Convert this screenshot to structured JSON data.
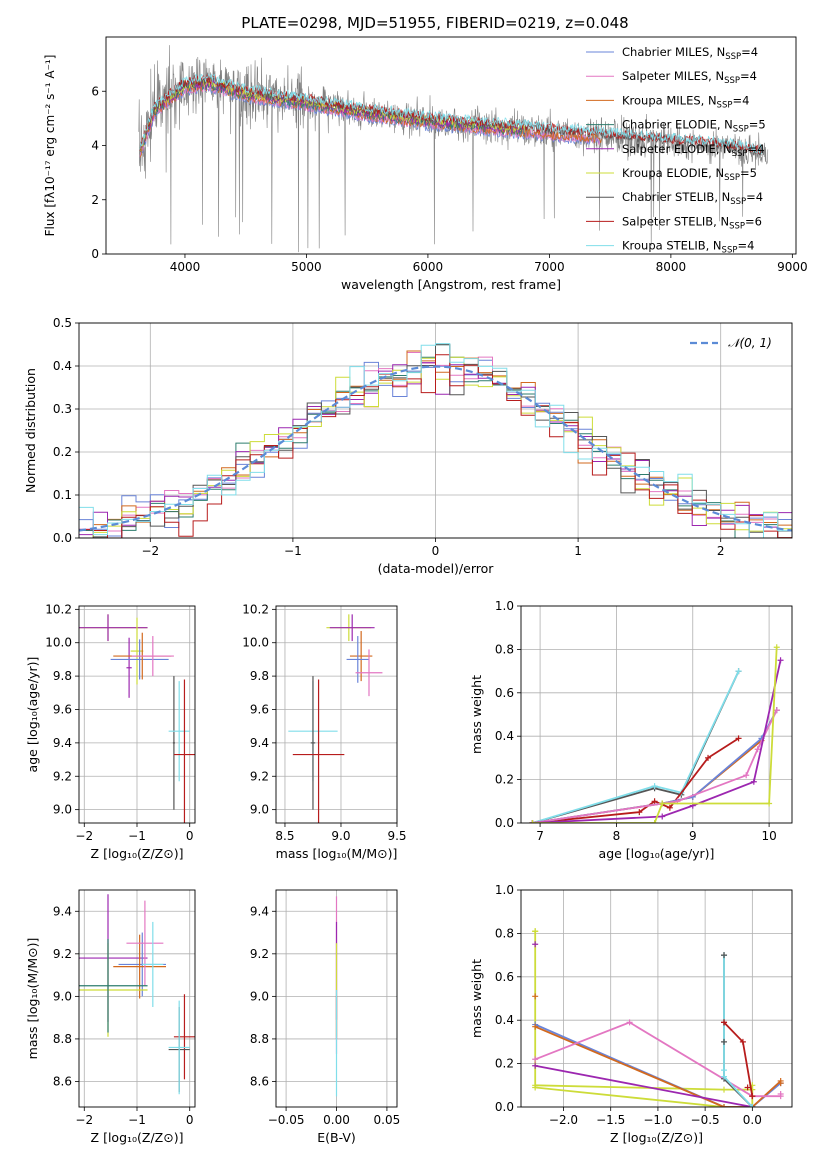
{
  "figure": {
    "title": "PLATE=0298, MJD=51955, FIBERID=0219, z=0.048"
  },
  "series": [
    {
      "key": "chabrier_miles",
      "label": "Chabrier MILES, N",
      "sub": "SSP",
      "suffix": "=4",
      "color": "#6a84d8"
    },
    {
      "key": "salpeter_miles",
      "label": "Salpeter MILES, N",
      "sub": "SSP",
      "suffix": "=4",
      "color": "#e377c2"
    },
    {
      "key": "kroupa_miles",
      "label": "Kroupa MILES, N",
      "sub": "SSP",
      "suffix": "=4",
      "color": "#d2691e"
    },
    {
      "key": "chabrier_elodie",
      "label": "Chabrier ELODIE, N",
      "sub": "SSP",
      "suffix": "=5",
      "color": "#2e7d6e"
    },
    {
      "key": "salpeter_elodie",
      "label": "Salpeter ELODIE, N",
      "sub": "SSP",
      "suffix": "=4",
      "color": "#9c27b0"
    },
    {
      "key": "kroupa_elodie",
      "label": "Kroupa ELODIE, N",
      "sub": "SSP",
      "suffix": "=5",
      "color": "#cddc39"
    },
    {
      "key": "chabrier_stelib",
      "label": "Chabrier STELIB, N",
      "sub": "SSP",
      "suffix": "=4",
      "color": "#555555"
    },
    {
      "key": "salpeter_stelib",
      "label": "Salpeter STELIB, N",
      "sub": "SSP",
      "suffix": "=6",
      "color": "#b71c1c"
    },
    {
      "key": "kroupa_stelib",
      "label": "Kroupa STELIB, N",
      "sub": "SSP",
      "suffix": "=4",
      "color": "#80deea"
    }
  ],
  "chart_data": [
    {
      "id": "spectrum",
      "type": "line",
      "xlabel": "wavelength [Angstrom, rest frame]",
      "ylabel": "Flux [fλ10⁻¹⁷ erg cm⁻² s⁻¹ A⁻¹]",
      "xlim": [
        3350,
        9030
      ],
      "ylim": [
        0,
        8
      ],
      "xticks": [
        4000,
        5000,
        6000,
        7000,
        8000,
        9000
      ],
      "yticks": [
        0,
        2,
        4,
        6
      ],
      "data_color": "#808080",
      "continuum": {
        "x": [
          3600,
          3750,
          4000,
          4200,
          4500,
          5000,
          5500,
          6000,
          6500,
          7000,
          7500,
          8000,
          8500,
          8800
        ],
        "y": [
          3.4,
          5.3,
          6.2,
          6.3,
          5.9,
          5.6,
          5.2,
          4.9,
          4.7,
          4.5,
          4.3,
          4.1,
          3.9,
          3.6
        ]
      }
    },
    {
      "id": "residual_histogram",
      "type": "bar",
      "xlabel": "(data-model)/error",
      "ylabel": "Normed distribution",
      "xlim": [
        -2.5,
        2.5
      ],
      "ylim": [
        0,
        0.5
      ],
      "xticks": [
        -2,
        -1,
        0,
        1,
        2
      ],
      "yticks": [
        0.0,
        0.1,
        0.2,
        0.3,
        0.4,
        0.5
      ],
      "legend": "𝒩(0, 1)",
      "legend_color": "#5b8bd6",
      "bin_width": 0.1
    },
    {
      "id": "age_vs_z",
      "type": "scatter",
      "xlabel": "Z [log₁₀(Z/Z⊙)]",
      "ylabel": "age  [log₁₀(age/yr)]",
      "xlim": [
        -2.1,
        0.1
      ],
      "ylim": [
        8.92,
        10.22
      ],
      "xticks": [
        -2,
        -1,
        0
      ],
      "yticks": [
        9.0,
        9.2,
        9.4,
        9.6,
        9.8,
        10.0,
        10.2
      ],
      "crosses": [
        {
          "s": "kroupa_elodie",
          "x": -1.55,
          "xerr": 0.75,
          "y": 10.09,
          "yerr": 0.08
        },
        {
          "s": "salpeter_elodie",
          "x": -1.55,
          "xerr": 0.75,
          "y": 10.09,
          "yerr": 0.08
        },
        {
          "s": "kroupa_elodie",
          "x": -1.0,
          "xerr": 0.12,
          "y": 9.95,
          "yerr": 0.2
        },
        {
          "s": "salpeter_elodie",
          "x": -1.15,
          "xerr": 0.05,
          "y": 9.85,
          "yerr": 0.18
        },
        {
          "s": "chabrier_miles",
          "x": -0.95,
          "xerr": 0.55,
          "y": 9.9,
          "yerr": 0.12
        },
        {
          "s": "kroupa_miles",
          "x": -0.9,
          "xerr": 0.55,
          "y": 9.92,
          "yerr": 0.14
        },
        {
          "s": "salpeter_miles",
          "x": -0.7,
          "xerr": 0.4,
          "y": 9.92,
          "yerr": 0.12
        },
        {
          "s": "chabrier_stelib",
          "x": -0.3,
          "xerr": 0.02,
          "y": 9.4,
          "yerr": 0.4
        },
        {
          "s": "kroupa_stelib",
          "x": -0.2,
          "xerr": 0.2,
          "y": 9.47,
          "yerr": 0.3
        },
        {
          "s": "salpeter_stelib",
          "x": -0.1,
          "xerr": 0.2,
          "y": 9.33,
          "yerr": 0.45
        }
      ]
    },
    {
      "id": "age_vs_mass",
      "type": "scatter",
      "xlabel": "mass [log₁₀(M/M⊙)]",
      "ylabel": "",
      "xlim": [
        8.42,
        9.5
      ],
      "ylim": [
        8.92,
        10.22
      ],
      "xticks": [
        8.5,
        9.0,
        9.5
      ],
      "yticks": [
        9.0,
        9.2,
        9.4,
        9.6,
        9.8,
        10.0,
        10.2
      ],
      "crosses": [
        {
          "s": "kroupa_elodie",
          "x": 9.07,
          "xerr": 0.2,
          "y": 10.09,
          "yerr": 0.08
        },
        {
          "s": "salpeter_elodie",
          "x": 9.1,
          "xerr": 0.2,
          "y": 10.09,
          "yerr": 0.08
        },
        {
          "s": "kroupa_miles",
          "x": 9.18,
          "xerr": 0.1,
          "y": 9.92,
          "yerr": 0.15
        },
        {
          "s": "chabrier_miles",
          "x": 9.15,
          "xerr": 0.1,
          "y": 9.9,
          "yerr": 0.14
        },
        {
          "s": "salpeter_miles",
          "x": 9.25,
          "xerr": 0.12,
          "y": 9.82,
          "yerr": 0.14
        },
        {
          "s": "kroupa_stelib",
          "x": 8.75,
          "xerr": 0.22,
          "y": 9.47,
          "yerr": 0.3
        },
        {
          "s": "chabrier_stelib",
          "x": 8.75,
          "xerr": 0.02,
          "y": 9.4,
          "yerr": 0.4
        },
        {
          "s": "salpeter_stelib",
          "x": 8.8,
          "xerr": 0.23,
          "y": 9.33,
          "yerr": 0.45
        }
      ]
    },
    {
      "id": "weight_vs_age",
      "type": "line",
      "xlabel": "age  [log₁₀(age/yr)]",
      "ylabel": "mass weight",
      "xlim": [
        6.75,
        10.3
      ],
      "ylim": [
        0,
        1
      ],
      "xticks": [
        7,
        8,
        9,
        10
      ],
      "yticks": [
        0.0,
        0.2,
        0.4,
        0.6,
        0.8,
        1.0
      ],
      "lines": [
        {
          "s": "chabrier_stelib",
          "x": [
            6.9,
            8.5,
            8.85,
            9.6
          ],
          "y": [
            0.0,
            0.16,
            0.13,
            0.7
          ]
        },
        {
          "s": "kroupa_stelib",
          "x": [
            6.9,
            8.5,
            8.85,
            9.6
          ],
          "y": [
            0.0,
            0.17,
            0.14,
            0.7
          ]
        },
        {
          "s": "salpeter_stelib",
          "x": [
            6.9,
            8.3,
            8.5,
            8.7,
            9.2,
            9.6
          ],
          "y": [
            0.0,
            0.05,
            0.1,
            0.07,
            0.3,
            0.39
          ]
        },
        {
          "s": "kroupa_miles",
          "x": [
            6.9,
            8.6,
            9.0,
            9.9,
            10.1
          ],
          "y": [
            0.0,
            0.09,
            0.12,
            0.38,
            0.52
          ]
        },
        {
          "s": "chabrier_miles",
          "x": [
            6.9,
            8.6,
            9.0,
            9.9,
            10.1
          ],
          "y": [
            0.0,
            0.09,
            0.12,
            0.39,
            0.52
          ]
        },
        {
          "s": "salpeter_miles",
          "x": [
            6.9,
            8.8,
            9.7,
            9.85,
            10.1
          ],
          "y": [
            0.0,
            0.1,
            0.22,
            0.34,
            0.52
          ]
        },
        {
          "s": "salpeter_elodie",
          "x": [
            6.9,
            8.6,
            9.0,
            9.8,
            10.15
          ],
          "y": [
            0.0,
            0.03,
            0.08,
            0.19,
            0.75
          ]
        },
        {
          "s": "kroupa_elodie",
          "x": [
            6.9,
            8.5,
            8.6,
            10.0,
            10.1
          ],
          "y": [
            0.0,
            0.0,
            0.09,
            0.09,
            0.81
          ]
        }
      ]
    },
    {
      "id": "mass_vs_z",
      "type": "scatter",
      "xlabel": "Z [log₁₀(Z/Z⊙)]",
      "ylabel": "mass [log₁₀(M/M⊙)]",
      "xlim": [
        -2.1,
        0.1
      ],
      "ylim": [
        8.48,
        9.5
      ],
      "xticks": [
        -2,
        -1,
        0
      ],
      "yticks": [
        8.6,
        8.8,
        9.0,
        9.2,
        9.4
      ],
      "crosses": [
        {
          "s": "salpeter_elodie",
          "x": -1.55,
          "xerr": 0.75,
          "y": 9.18,
          "yerr": 0.3
        },
        {
          "s": "chabrier_miles",
          "x": -0.9,
          "xerr": 0.45,
          "y": 9.15,
          "yerr": 0.15
        },
        {
          "s": "kroupa_miles",
          "x": -0.95,
          "xerr": 0.5,
          "y": 9.14,
          "yerr": 0.15
        },
        {
          "s": "salpeter_miles",
          "x": -0.85,
          "xerr": 0.35,
          "y": 9.25,
          "yerr": 0.2
        },
        {
          "s": "kroupa_stelib",
          "x": -0.7,
          "xerr": 0.2,
          "y": 9.15,
          "yerr": 0.2
        },
        {
          "s": "kroupa_elodie",
          "x": -1.55,
          "xerr": 0.75,
          "y": 9.03,
          "yerr": 0.22
        },
        {
          "s": "chabrier_elodie",
          "x": -1.55,
          "xerr": 0.75,
          "y": 9.05,
          "yerr": 0.22
        },
        {
          "s": "salpeter_stelib",
          "x": -0.1,
          "xerr": 0.2,
          "y": 8.81,
          "yerr": 0.2
        },
        {
          "s": "chabrier_stelib",
          "x": -0.2,
          "xerr": 0.2,
          "y": 8.75,
          "yerr": 0.2
        },
        {
          "s": "kroupa_stelib",
          "x": -0.2,
          "xerr": 0.2,
          "y": 8.76,
          "yerr": 0.22
        }
      ]
    },
    {
      "id": "mass_vs_ebv",
      "type": "scatter",
      "xlabel": "E(B-V)",
      "ylabel": "",
      "xlim": [
        -0.06,
        0.06
      ],
      "ylim": [
        8.48,
        9.5
      ],
      "xticks": [
        -0.05,
        0.0,
        0.05
      ],
      "xtick_labels": [
        "−0.05",
        "0.00",
        "0.05"
      ],
      "yticks": [
        8.6,
        8.8,
        9.0,
        9.2,
        9.4
      ],
      "crosses": [
        {
          "s": "salpeter_miles",
          "x": 0.0,
          "xerr": 0,
          "y": 9.1,
          "yerr": 0.37
        },
        {
          "s": "salpeter_elodie",
          "x": 0.0,
          "xerr": 0,
          "y": 9.12,
          "yerr": 0.23
        },
        {
          "s": "kroupa_elodie",
          "x": 0.0,
          "xerr": 0,
          "y": 9.03,
          "yerr": 0.22
        },
        {
          "s": "salpeter_stelib",
          "x": 0.0,
          "xerr": 0,
          "y": 8.9,
          "yerr": 0.1
        },
        {
          "s": "kroupa_stelib",
          "x": 0.0,
          "xerr": 0,
          "y": 8.78,
          "yerr": 0.25
        }
      ]
    },
    {
      "id": "weight_vs_z",
      "type": "line",
      "xlabel": "Z [log₁₀(Z/Z⊙)]",
      "ylabel": "mass weight",
      "xlim": [
        -2.45,
        0.42
      ],
      "ylim": [
        0,
        1
      ],
      "xticks": [
        -2.0,
        -1.5,
        -1.0,
        -0.5,
        0.0
      ],
      "xtick_labels": [
        "−2.0",
        "−1.5",
        "−1.0",
        "−0.5",
        "0.0"
      ],
      "yticks": [
        0.0,
        0.2,
        0.4,
        0.6,
        0.8,
        1.0
      ],
      "lines": [
        {
          "s": "kroupa_elodie",
          "x": [
            -2.3,
            -2.3,
            -0.3,
            0.0,
            0.0
          ],
          "y": [
            0.81,
            0.09,
            0.0,
            0.0,
            0.1
          ]
        },
        {
          "s": "kroupa_elodie",
          "x": [
            -2.3,
            -0.3,
            0.0
          ],
          "y": [
            0.1,
            0.08,
            0.08
          ]
        },
        {
          "s": "chabrier_miles",
          "x": [
            -2.3,
            -0.3,
            0.0,
            0.3
          ],
          "y": [
            0.38,
            0.0,
            0.0,
            0.11
          ]
        },
        {
          "s": "kroupa_miles",
          "x": [
            -2.3,
            -0.3,
            0.0,
            0.3
          ],
          "y": [
            0.37,
            0.0,
            0.0,
            0.12
          ]
        },
        {
          "s": "salpeter_miles",
          "x": [
            -2.3,
            -1.3,
            0.0,
            0.3
          ],
          "y": [
            0.22,
            0.39,
            0.05,
            0.05
          ]
        },
        {
          "s": "salpeter_elodie",
          "x": [
            -2.3,
            0.0
          ],
          "y": [
            0.19,
            0.0
          ]
        },
        {
          "s": "chabrier_stelib",
          "x": [
            -0.3,
            -0.3,
            0.0
          ],
          "y": [
            0.7,
            0.13,
            0.0
          ]
        },
        {
          "s": "kroupa_stelib",
          "x": [
            -0.3,
            -0.3,
            0.0
          ],
          "y": [
            0.7,
            0.14,
            0.0
          ]
        },
        {
          "s": "salpeter_stelib",
          "x": [
            -0.3,
            -0.1,
            0.0
          ],
          "y": [
            0.39,
            0.3,
            0.05
          ]
        }
      ],
      "markers": [
        {
          "s": "kroupa_elodie",
          "x": -2.3,
          "y": 0.81
        },
        {
          "s": "salpeter_elodie",
          "x": -2.3,
          "y": 0.75
        },
        {
          "s": "kroupa_miles",
          "x": -2.3,
          "y": 0.51
        },
        {
          "s": "chabrier_stelib",
          "x": -0.3,
          "y": 0.7
        },
        {
          "s": "salpeter_stelib",
          "x": -0.3,
          "y": 0.39
        },
        {
          "s": "chabrier_stelib",
          "x": -0.3,
          "y": 0.3
        },
        {
          "s": "kroupa_stelib",
          "x": -0.3,
          "y": 0.17
        },
        {
          "s": "salpeter_stelib",
          "x": -0.05,
          "y": 0.09
        },
        {
          "s": "salpeter_stelib",
          "x": 0.0,
          "y": 0.05
        },
        {
          "s": "kroupa_miles",
          "x": 0.3,
          "y": 0.11
        },
        {
          "s": "salpeter_miles",
          "x": 0.3,
          "y": 0.06
        }
      ]
    }
  ]
}
